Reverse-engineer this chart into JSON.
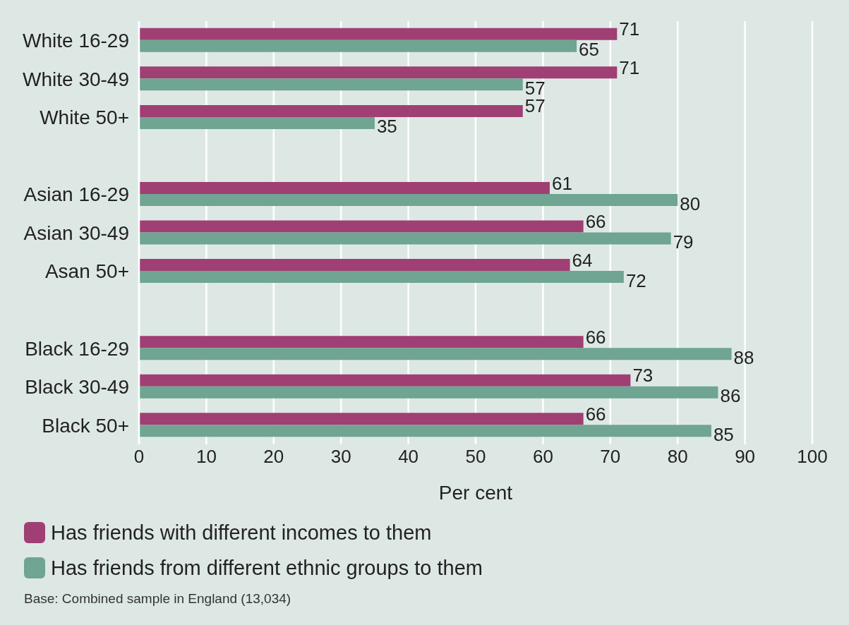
{
  "chart_data": {
    "type": "bar",
    "orientation": "horizontal",
    "xlabel": "Per cent",
    "categories": [
      "White 16-29",
      "White 30-49",
      "White 50+",
      null,
      "Asian 16-29",
      "Asian 30-49",
      "Asan 50+",
      null,
      "Black 16-29",
      "Black 30-49",
      "Black 50+"
    ],
    "series": [
      {
        "name": "Has friends with different incomes to them",
        "color": "#a03f73",
        "values": [
          71,
          71,
          57,
          null,
          61,
          66,
          64,
          null,
          66,
          73,
          66
        ]
      },
      {
        "name": "Has friends from different ethnic groups to them",
        "color": "#6fa592",
        "values": [
          65,
          57,
          35,
          null,
          80,
          79,
          72,
          null,
          88,
          86,
          85
        ]
      }
    ],
    "xlim": [
      0,
      100
    ],
    "xticks": [
      0,
      10,
      20,
      30,
      40,
      50,
      60,
      70,
      80,
      90,
      100
    ],
    "grid": "x",
    "data_labels": true,
    "legend": "bottom",
    "annotations": [
      "Base: Combined sample in England (13,034)"
    ]
  }
}
